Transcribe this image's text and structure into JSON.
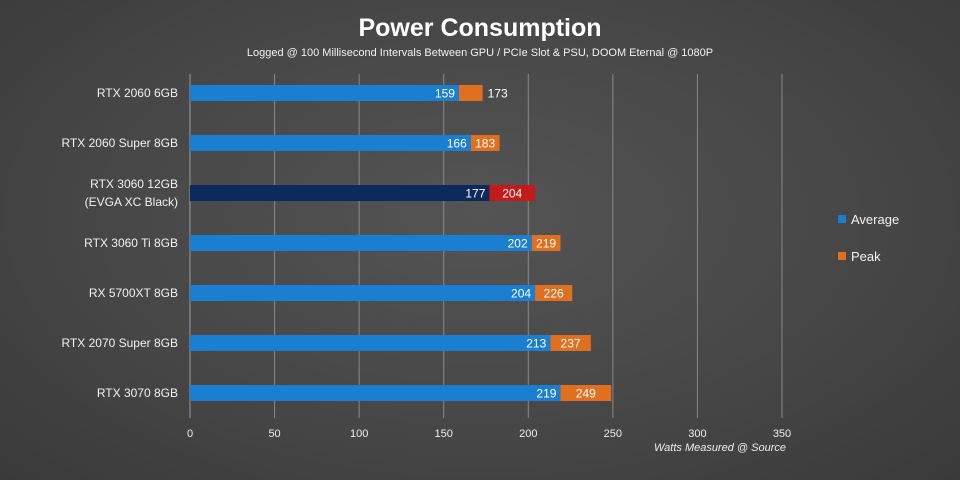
{
  "chart_data": {
    "type": "bar",
    "orientation": "horizontal",
    "stacked_overlay": true,
    "title": "Power Consumption",
    "subtitle": "Logged @ 100 Millisecond Intervals Between GPU / PCIe Slot & PSU, DOOM Eternal @ 1080P",
    "xlabel": "Watts Measured @ Source",
    "ylabel": "",
    "xlim": [
      0,
      350
    ],
    "xticks": [
      0,
      50,
      100,
      150,
      200,
      250,
      300,
      350
    ],
    "grid": true,
    "legend_placement": "right",
    "categories": [
      "RTX 2060 6GB",
      "RTX 2060 Super 8GB",
      "RTX 3060 12GB\n(EVGA XC Black)",
      "RTX 3060 Ti 8GB",
      "RX 5700XT 8GB",
      "RTX 2070 Super 8GB",
      "RTX 3070 8GB"
    ],
    "highlight_index": 2,
    "series": [
      {
        "name": "Average",
        "values": [
          159,
          166,
          177,
          202,
          204,
          213,
          219
        ],
        "color": "#1a7fd0",
        "highlight_color": "#0d2a5e"
      },
      {
        "name": "Peak",
        "values": [
          173,
          183,
          204,
          219,
          226,
          237,
          249
        ],
        "color": "#e07020",
        "highlight_color": "#c51a1a"
      }
    ]
  }
}
